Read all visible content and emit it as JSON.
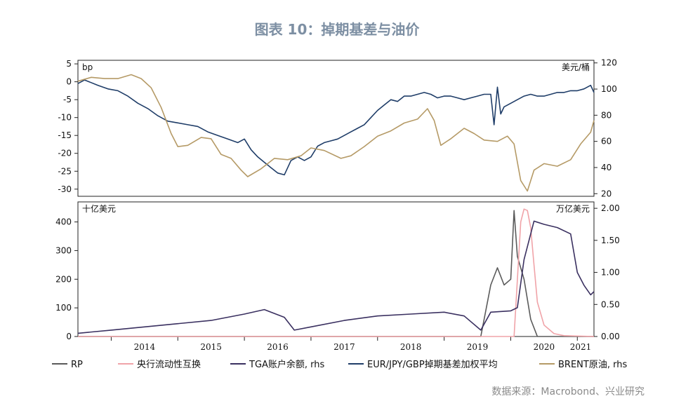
{
  "title": "图表 10：掉期基差与油价",
  "source": "数据来源：Macrobond、兴业研究",
  "colors": {
    "rp": "#5a5a5a",
    "cb_swap": "#f0a3a8",
    "tga": "#3a3060",
    "basis": "#1f3d68",
    "brent": "#b59a66"
  },
  "chart_data": [
    {
      "type": "line",
      "panel": "top",
      "ylabel_left": "bp",
      "ylabel_right": "美元/桶",
      "ylim_left": [
        -32,
        6
      ],
      "yticks_left": [
        5,
        0,
        -5,
        -10,
        -15,
        -20,
        -25,
        -30
      ],
      "ylim_right": [
        18,
        122
      ],
      "yticks_right": [
        120,
        100,
        80,
        60,
        40,
        20
      ],
      "grid": false,
      "series": [
        {
          "name": "EUR/JPY/GBP掉期基差加权平均",
          "axis": "left",
          "x": [
            2013.5,
            2013.6,
            2013.8,
            2013.95,
            2014.1,
            2014.25,
            2014.4,
            2014.55,
            2014.7,
            2014.85,
            2015.0,
            2015.15,
            2015.3,
            2015.45,
            2015.6,
            2015.75,
            2015.9,
            2016.0,
            2016.1,
            2016.2,
            2016.3,
            2016.4,
            2016.5,
            2016.6,
            2016.7,
            2016.8,
            2016.9,
            2017.0,
            2017.1,
            2017.2,
            2017.3,
            2017.4,
            2017.5,
            2017.6,
            2017.7,
            2017.8,
            2017.9,
            2018.0,
            2018.1,
            2018.2,
            2018.3,
            2018.4,
            2018.5,
            2018.6,
            2018.7,
            2018.8,
            2018.9,
            2019.0,
            2019.1,
            2019.2,
            2019.3,
            2019.4,
            2019.5,
            2019.6,
            2019.7,
            2019.75,
            2019.8,
            2019.85,
            2019.9,
            2020.0,
            2020.1,
            2020.2,
            2020.3,
            2020.4,
            2020.5,
            2020.6,
            2020.7,
            2020.8,
            2020.9,
            2021.0,
            2021.1,
            2021.2,
            2021.25
          ],
          "y": [
            -0.5,
            0.5,
            -1,
            -2,
            -2.5,
            -4,
            -6,
            -7.5,
            -9.5,
            -11,
            -11.5,
            -12,
            -12.5,
            -14,
            -15,
            -16,
            -17,
            -16,
            -19,
            -21,
            -22.5,
            -24,
            -25.5,
            -26,
            -22,
            -21,
            -22,
            -21,
            -18,
            -17,
            -16.5,
            -16,
            -15,
            -14,
            -13,
            -12,
            -10,
            -8,
            -6.5,
            -5,
            -5.5,
            -4,
            -4,
            -3.5,
            -3,
            -3.5,
            -4.5,
            -4,
            -4,
            -4.5,
            -5,
            -4.5,
            -4,
            -3.5,
            -3.5,
            -12,
            -1.5,
            -9,
            -7,
            -6,
            -5,
            -4,
            -3.5,
            -4,
            -4,
            -3.5,
            -3,
            -3,
            -2.5,
            -2.5,
            -2,
            -1,
            -3
          ]
        },
        {
          "name": "BRENT原油",
          "axis": "right",
          "x": [
            2013.5,
            2013.7,
            2013.9,
            2014.1,
            2014.3,
            2014.45,
            2014.6,
            2014.75,
            2014.9,
            2015.0,
            2015.15,
            2015.35,
            2015.5,
            2015.65,
            2015.8,
            2015.95,
            2016.05,
            2016.25,
            2016.45,
            2016.65,
            2016.85,
            2017.0,
            2017.2,
            2017.45,
            2017.6,
            2017.8,
            2018.0,
            2018.2,
            2018.4,
            2018.6,
            2018.75,
            2018.85,
            2018.95,
            2019.1,
            2019.3,
            2019.45,
            2019.6,
            2019.8,
            2019.95,
            2020.05,
            2020.15,
            2020.25,
            2020.35,
            2020.5,
            2020.7,
            2020.9,
            2021.05,
            2021.2,
            2021.25
          ],
          "y": [
            106,
            109,
            108,
            108,
            111,
            108,
            101,
            86,
            66,
            56,
            57,
            63,
            62,
            50,
            47,
            38,
            33,
            39,
            47,
            46,
            49,
            55,
            53,
            47,
            49,
            56,
            64,
            68,
            74,
            77,
            85,
            76,
            57,
            62,
            70,
            66,
            61,
            60,
            64,
            58,
            30,
            22,
            38,
            43,
            41,
            46,
            58,
            67,
            76
          ]
        }
      ]
    },
    {
      "type": "line",
      "panel": "bottom",
      "ylabel_left": "十亿美元",
      "ylabel_right": "万亿美元",
      "ylim_left": [
        0,
        470
      ],
      "yticks_left": [
        400,
        300,
        200,
        100,
        0
      ],
      "ylim_right": [
        0,
        2.1
      ],
      "yticks_right": [
        2.0,
        1.5,
        1.0,
        0.5,
        0.0
      ],
      "x_tick_labels": [
        "2014",
        "2015",
        "2016",
        "2017",
        "2018",
        "2019",
        "2020",
        "2021"
      ],
      "legend": [
        "RP",
        "央行流动性互换",
        "TGA账户余额, rhs",
        "EUR/JPY/GBP掉期基差加权平均",
        "BRENT原油, rhs"
      ],
      "legend_position": "bottom",
      "grid": false,
      "series": [
        {
          "name": "RP",
          "axis": "left",
          "x": [
            2013.5,
            2019.55,
            2019.7,
            2019.8,
            2019.9,
            2020.0,
            2020.05,
            2020.1,
            2020.2,
            2020.3,
            2020.4,
            2020.5,
            2021.25
          ],
          "y": [
            0,
            0,
            180,
            240,
            180,
            200,
            440,
            280,
            200,
            60,
            0,
            0,
            0
          ]
        },
        {
          "name": "央行流动性互换",
          "axis": "left",
          "x": [
            2013.5,
            2020.05,
            2020.15,
            2020.2,
            2020.25,
            2020.3,
            2020.35,
            2020.4,
            2020.5,
            2020.65,
            2020.8,
            2021.25
          ],
          "y": [
            0,
            0,
            400,
            445,
            440,
            380,
            250,
            120,
            40,
            10,
            3,
            0
          ]
        },
        {
          "name": "TGA账户余额, rhs",
          "axis": "right",
          "x": [
            2013.5,
            2014.0,
            2014.5,
            2015.0,
            2015.5,
            2016.0,
            2016.3,
            2016.6,
            2016.75,
            2017.0,
            2017.5,
            2018.0,
            2018.5,
            2019.0,
            2019.3,
            2019.55,
            2019.7,
            2020.0,
            2020.1,
            2020.2,
            2020.35,
            2020.5,
            2020.7,
            2020.9,
            2021.0,
            2021.1,
            2021.2,
            2021.25
          ],
          "y": [
            0.05,
            0.1,
            0.15,
            0.2,
            0.25,
            0.35,
            0.42,
            0.3,
            0.1,
            0.15,
            0.25,
            0.32,
            0.35,
            0.38,
            0.32,
            0.1,
            0.38,
            0.4,
            0.45,
            1.2,
            1.8,
            1.75,
            1.7,
            1.6,
            1.0,
            0.8,
            0.65,
            0.7
          ]
        }
      ]
    }
  ]
}
